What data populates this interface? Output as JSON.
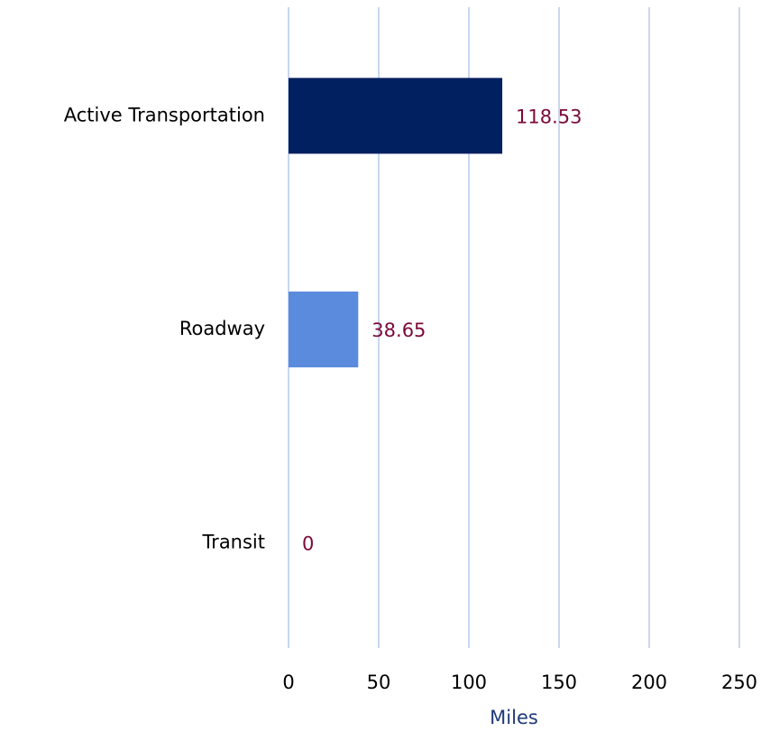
{
  "chart_data": {
    "type": "bar",
    "orientation": "horizontal",
    "categories": [
      "Active Transportation",
      "Roadway",
      "Transit"
    ],
    "values": [
      118.53,
      38.65,
      0
    ],
    "colors": [
      "#002060",
      "#5b8bdc",
      "#5b8bdc"
    ],
    "label_color": "#7b0a3a",
    "xlabel": "Miles",
    "xlim": [
      0,
      250
    ],
    "xticks": [
      0,
      50,
      100,
      150,
      200,
      250
    ],
    "grid": true
  }
}
